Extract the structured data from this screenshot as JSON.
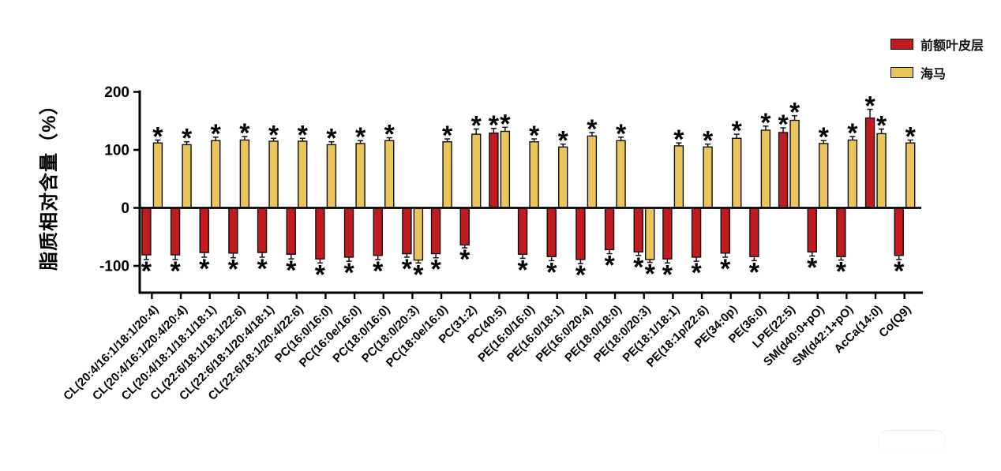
{
  "chart_data": {
    "type": "bar",
    "title": "",
    "ylabel": "脂质相对含量（%）",
    "xlabel": "",
    "yticks": [
      200,
      100,
      0,
      -100
    ],
    "ylim": [
      -147,
      200
    ],
    "grid": false,
    "legend_position": "top-right",
    "bar_outline": "#101010",
    "sig_marker": "*",
    "sig_note": "every bar carries a * significance mark beyond its error bar",
    "legend": [
      {
        "name": "前额叶皮层",
        "color": "#C11B20"
      },
      {
        "name": "海马",
        "color": "#EAC55C"
      }
    ],
    "categories": [
      "CL(20:4/16:1/18:1/20:4)",
      "CL(20:4/16:1/20:4/20:4)",
      "CL(20:4/18:1/18:1/18:1)",
      "CL(22:6/18:1/18:1/22:6)",
      "CL(22:6/18:1/20:4/18:1)",
      "CL(22:6/18:1/20:4/22:6)",
      "PC(16:0/16:0)",
      "PC(16:0e/16:0)",
      "PC(18:0/16:0)",
      "PC(18:0/20:3)",
      "PC(18:0e/16:0)",
      "PC(31:2)",
      "PC(40:5)",
      "PE(16:0/16:0)",
      "PE(16:0/18:1)",
      "PE(16:0/20:4)",
      "PE(18:0/18:0)",
      "PE(18:0/20:3)",
      "PE(18:1/18:1)",
      "PE(18:1p/22:6)",
      "PE(34:0p)",
      "PE(36:0)",
      "LPE(22:5)",
      "SM(d40:0+pO)",
      "SM(d42:1+pO)",
      "AcCa(14:0)",
      "Co(Q9)"
    ],
    "series": [
      {
        "name": "前额叶皮层",
        "color": "#C11B20",
        "values": [
          -81,
          -81,
          -77,
          -78,
          -77,
          -80,
          -88,
          -85,
          -82,
          -79,
          -79,
          -64,
          129,
          -80,
          -84,
          -89,
          -72,
          -76,
          -88,
          -85,
          -78,
          -84,
          130,
          -76,
          -84,
          155,
          -82
        ],
        "errors": [
          8,
          8,
          8,
          8,
          8,
          8,
          7,
          7,
          7,
          6,
          7,
          5,
          8,
          7,
          7,
          7,
          7,
          6,
          7,
          7,
          7,
          7,
          8,
          7,
          6,
          15,
          7
        ]
      },
      {
        "name": "海马",
        "color": "#EAC55C",
        "values": [
          112,
          109,
          116,
          117,
          115,
          115,
          109,
          111,
          116,
          -90,
          114,
          127,
          132,
          114,
          105,
          124,
          116,
          -89,
          107,
          105,
          120,
          134,
          151,
          111,
          117,
          128,
          112
        ],
        "errors": [
          5,
          5,
          6,
          6,
          5,
          5,
          5,
          5,
          5,
          5,
          5,
          9,
          7,
          5,
          5,
          6,
          6,
          5,
          5,
          5,
          7,
          7,
          8,
          5,
          6,
          8,
          5
        ]
      }
    ]
  }
}
